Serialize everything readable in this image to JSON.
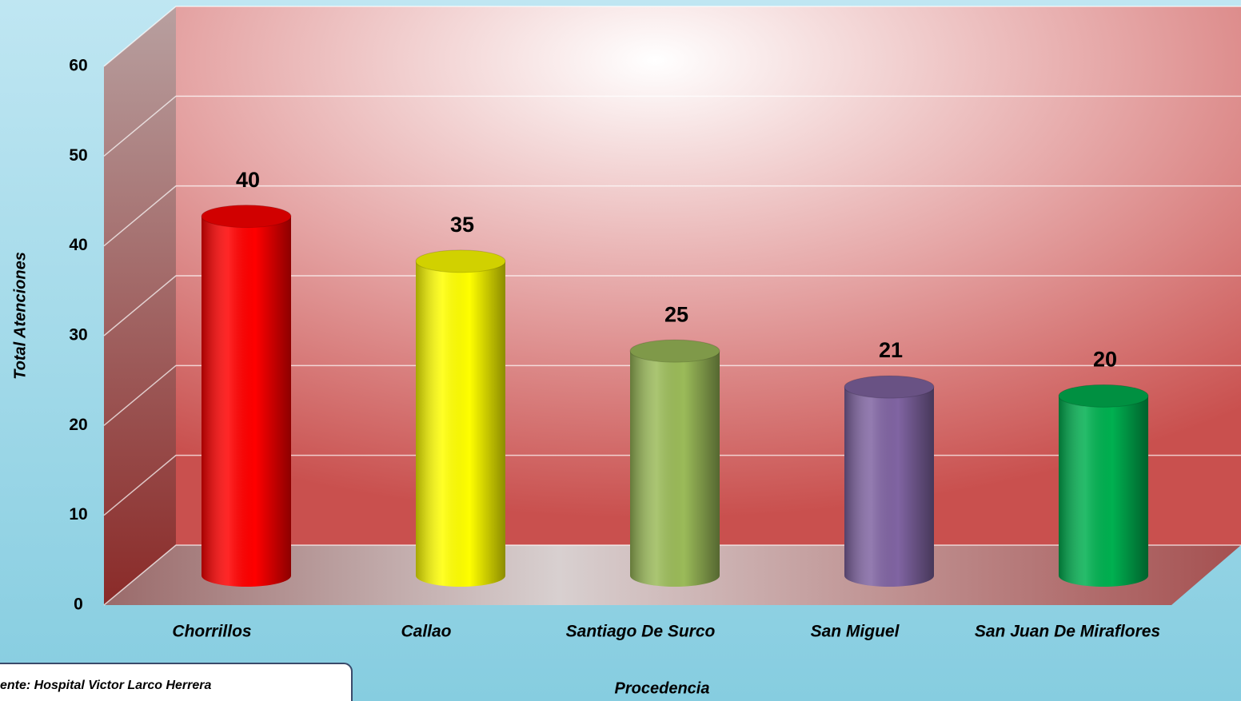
{
  "chart_data": {
    "type": "bar3d",
    "categories": [
      "Chorrillos",
      "Callao",
      "Santiago De Surco",
      "San Miguel",
      "San Juan De Miraflores"
    ],
    "values": [
      40,
      35,
      25,
      21,
      20
    ],
    "colors": [
      "#ff0000",
      "#ffff00",
      "#9bbb59",
      "#8064a2",
      "#00b050"
    ],
    "ylim": [
      0,
      60
    ],
    "yticks": [
      0,
      10,
      20,
      30,
      40,
      50,
      60
    ],
    "y_label": "Total Atenciones",
    "x_label": "Procedencia",
    "grid": true,
    "source": "ente:  Hospital Victor Larco Herrera"
  }
}
